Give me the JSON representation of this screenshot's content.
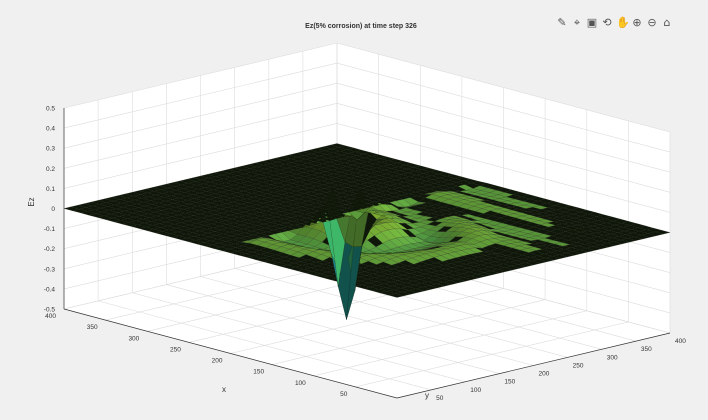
{
  "window": {
    "background": "#f0f0f0",
    "axes_background": "#ffffff"
  },
  "toolbar": {
    "buttons": [
      {
        "icon": "brush-icon",
        "glyph": "✎"
      },
      {
        "icon": "data-tips-icon",
        "glyph": "⌖"
      },
      {
        "icon": "export-icon",
        "glyph": "▣"
      },
      {
        "icon": "rotate-3d-icon",
        "glyph": "⟲"
      },
      {
        "icon": "pan-icon",
        "glyph": "✋"
      },
      {
        "icon": "zoom-in-icon",
        "glyph": "⊕"
      },
      {
        "icon": "zoom-out-icon",
        "glyph": "⊖"
      },
      {
        "icon": "home-icon",
        "glyph": "⌂"
      }
    ]
  },
  "chart_data": {
    "type": "surface",
    "title": "Ez(5% corrosion) at time step 326",
    "xlabel": "x",
    "ylabel": "y",
    "zlabel": "Ez",
    "xlim": [
      0,
      400
    ],
    "ylim": [
      0,
      400
    ],
    "zlim": [
      -0.5,
      0.5
    ],
    "xticks": [
      50,
      100,
      150,
      200,
      250,
      300,
      350,
      400
    ],
    "yticks": [
      50,
      100,
      150,
      200,
      250,
      300,
      350,
      400
    ],
    "zticks": [
      -0.5,
      -0.4,
      -0.3,
      -0.2,
      -0.1,
      0,
      0.1,
      0.2,
      0.3,
      0.4,
      0.5
    ],
    "grid": true,
    "colormap": [
      "#0d1232",
      "#1a5d8a",
      "#1f9e8b",
      "#3fb868",
      "#86c53d",
      "#c8c820",
      "#e5d21a"
    ],
    "features": {
      "flat_level": 0,
      "wave_ridges": [
        {
          "x": 200,
          "y": 150,
          "z": 0.25
        },
        {
          "x": 200,
          "y": 185,
          "z": 0.27
        }
      ],
      "trough": {
        "x": 200,
        "y": 170,
        "z": -0.5
      }
    }
  }
}
